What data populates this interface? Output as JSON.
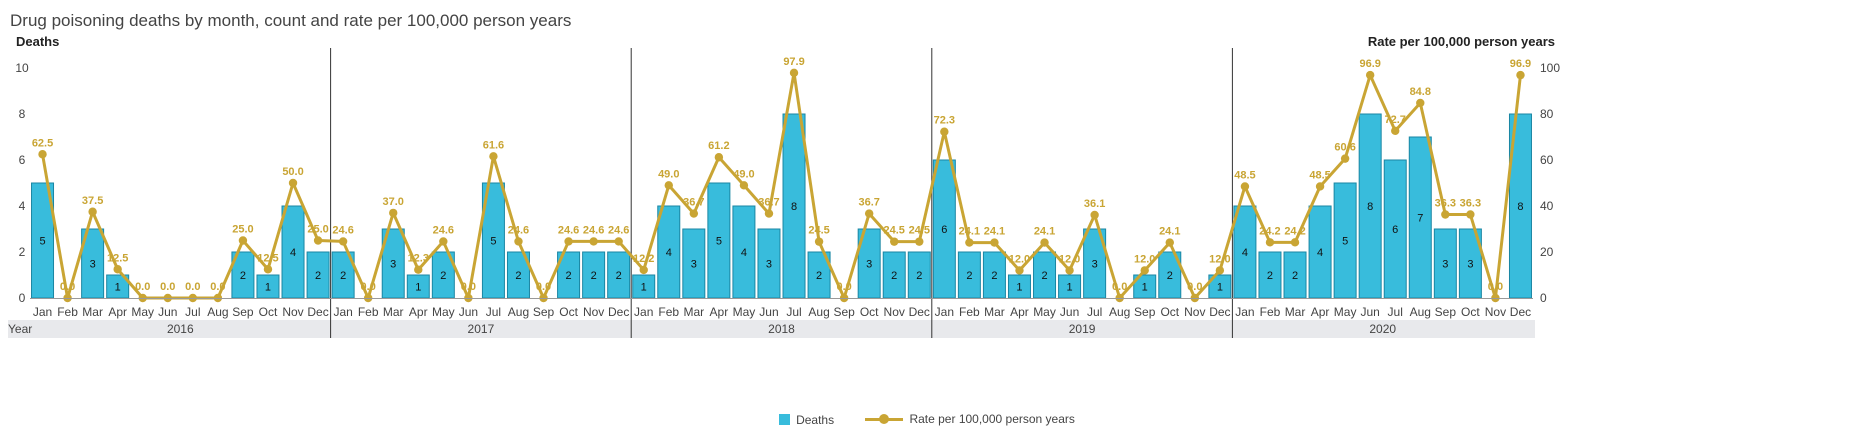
{
  "title": "Drug poisoning deaths by month, count and rate per 100,000 person years",
  "colors": {
    "bar": "#38bcdc",
    "bar_edge": "#1a86a3",
    "line": "#c9a534",
    "separator": "#333333",
    "year_band": "#e8e9ec"
  },
  "chart_data": {
    "type": "bar",
    "title": "Drug poisoning deaths by month, count and rate per 100,000 person years",
    "xlabel": "Year",
    "ylabel": "Deaths",
    "y2label": "Rate per 100,000 person years",
    "ylim": [
      0,
      10
    ],
    "y2lim": [
      0,
      100
    ],
    "yticks": [
      0,
      2,
      4,
      6,
      8,
      10
    ],
    "y2ticks": [
      0,
      20,
      40,
      60,
      80,
      100
    ],
    "legend_position": "bottom",
    "years": [
      "2016",
      "2017",
      "2018",
      "2019",
      "2020"
    ],
    "months": [
      "Jan",
      "Feb",
      "Mar",
      "Apr",
      "May",
      "Jun",
      "Jul",
      "Aug",
      "Sep",
      "Oct",
      "Nov",
      "Dec"
    ],
    "series": [
      {
        "name": "Deaths",
        "kind": "bar",
        "axis": "left",
        "values": [
          [
            5,
            0,
            3,
            1,
            0,
            0,
            0,
            0,
            2,
            1,
            4,
            2
          ],
          [
            2,
            0,
            3,
            1,
            2,
            0,
            5,
            2,
            0,
            2,
            2,
            2
          ],
          [
            1,
            4,
            3,
            5,
            4,
            3,
            8,
            2,
            0,
            3,
            2,
            2
          ],
          [
            6,
            2,
            2,
            1,
            2,
            1,
            3,
            0,
            1,
            2,
            0,
            1
          ],
          [
            4,
            2,
            2,
            4,
            5,
            8,
            6,
            7,
            3,
            3,
            0,
            8
          ]
        ]
      },
      {
        "name": "Rate per 100,000 person years",
        "kind": "line",
        "axis": "right",
        "values": [
          [
            62.5,
            0.0,
            37.5,
            12.5,
            0.0,
            0.0,
            0.0,
            0.0,
            25.0,
            12.5,
            50.0,
            25.0
          ],
          [
            24.6,
            0.0,
            37.0,
            12.3,
            24.6,
            0.0,
            61.6,
            24.6,
            0.0,
            24.6,
            24.6,
            24.6
          ],
          [
            12.2,
            49.0,
            36.7,
            61.2,
            49.0,
            36.7,
            97.9,
            24.5,
            0.0,
            36.7,
            24.5,
            24.5
          ],
          [
            72.3,
            24.1,
            24.1,
            12.0,
            24.1,
            12.0,
            36.1,
            0.0,
            12.0,
            24.1,
            0.0,
            12.0
          ],
          [
            48.5,
            24.2,
            24.2,
            48.5,
            60.6,
            96.9,
            72.7,
            84.8,
            36.3,
            36.3,
            0.0,
            96.9
          ]
        ]
      }
    ]
  }
}
